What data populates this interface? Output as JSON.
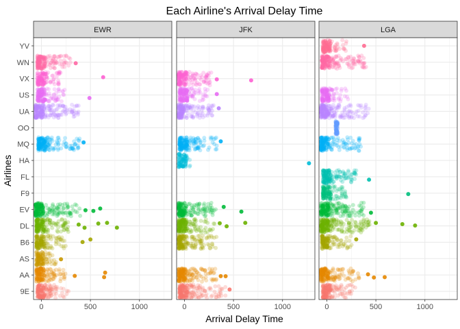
{
  "chart_data": {
    "type": "scatter",
    "title": "Each Airline's Arrival Delay Time",
    "xlabel": "Arrival Delay Time",
    "ylabel": "Airlines",
    "xlim": [
      -80,
      1330
    ],
    "xticks": [
      0,
      500,
      1000
    ],
    "grid": true,
    "jitter": true,
    "panels": [
      "EWR",
      "JFK",
      "LGA"
    ],
    "categories": [
      "9E",
      "AA",
      "AS",
      "B6",
      "DL",
      "EV",
      "F9",
      "FL",
      "HA",
      "MQ",
      "OO",
      "UA",
      "US",
      "VX",
      "WN",
      "YV"
    ],
    "colors": {
      "9E": "#F8766D",
      "AA": "#E58700",
      "AS": "#C99800",
      "B6": "#A3A500",
      "DL": "#6BB100",
      "EV": "#00BA38",
      "F9": "#00BF7D",
      "FL": "#00C0AF",
      "HA": "#00BCD8",
      "MQ": "#00B0F6",
      "OO": "#619CFF",
      "UA": "#B983FF",
      "US": "#E76BF3",
      "VX": "#FD61D1",
      "WN": "#FF67A4",
      "YV": "#FF6C91"
    },
    "series": [
      {
        "panel": "EWR",
        "carrier": "9E",
        "range": [
          -40,
          280
        ],
        "outliers": []
      },
      {
        "panel": "EWR",
        "carrier": "AA",
        "range": [
          -50,
          250
        ],
        "outliers": [
          340,
          640,
          650
        ]
      },
      {
        "panel": "EWR",
        "carrier": "AS",
        "range": [
          -50,
          150
        ],
        "outliers": [
          200
        ]
      },
      {
        "panel": "EWR",
        "carrier": "B6",
        "range": [
          -50,
          250
        ],
        "outliers": [
          420,
          500
        ]
      },
      {
        "panel": "EWR",
        "carrier": "DL",
        "range": [
          -50,
          300
        ],
        "outliers": [
          380,
          440,
          580,
          670,
          770
        ]
      },
      {
        "panel": "EWR",
        "carrier": "EV",
        "range": [
          -60,
          400
        ],
        "outliers": [
          450,
          530,
          600
        ]
      },
      {
        "panel": "EWR",
        "carrier": "MQ",
        "range": [
          -30,
          400
        ],
        "outliers": [
          430
        ]
      },
      {
        "panel": "EWR",
        "carrier": "UA",
        "range": [
          -60,
          380
        ],
        "outliers": []
      },
      {
        "panel": "EWR",
        "carrier": "US",
        "range": [
          -40,
          240
        ],
        "outliers": [
          490
        ]
      },
      {
        "panel": "EWR",
        "carrier": "VX",
        "range": [
          -40,
          200
        ],
        "outliers": [
          630
        ]
      },
      {
        "panel": "EWR",
        "carrier": "WN",
        "range": [
          -40,
          300
        ],
        "outliers": [
          350
        ]
      },
      {
        "panel": "JFK",
        "carrier": "9E",
        "range": [
          -50,
          420
        ],
        "outliers": [
          460
        ]
      },
      {
        "panel": "JFK",
        "carrier": "AA",
        "range": [
          -60,
          330
        ],
        "outliers": [
          370,
          420
        ]
      },
      {
        "panel": "JFK",
        "carrier": "B6",
        "range": [
          -60,
          330
        ],
        "outliers": []
      },
      {
        "panel": "JFK",
        "carrier": "DL",
        "range": [
          -60,
          310
        ],
        "outliers": [
          360,
          430,
          620
        ]
      },
      {
        "panel": "JFK",
        "carrier": "EV",
        "range": [
          -60,
          320
        ],
        "outliers": [
          400,
          580
        ]
      },
      {
        "panel": "JFK",
        "carrier": "HA",
        "range": [
          -60,
          60
        ],
        "outliers": [
          1270
        ]
      },
      {
        "panel": "JFK",
        "carrier": "MQ",
        "range": [
          -50,
          330
        ],
        "outliers": [
          370
        ]
      },
      {
        "panel": "JFK",
        "carrier": "UA",
        "range": [
          -60,
          300
        ],
        "outliers": [
          350
        ]
      },
      {
        "panel": "JFK",
        "carrier": "US",
        "range": [
          -50,
          240
        ],
        "outliers": [
          330
        ]
      },
      {
        "panel": "JFK",
        "carrier": "VX",
        "range": [
          -60,
          280
        ],
        "outliers": [
          330,
          680
        ]
      },
      {
        "panel": "LGA",
        "carrier": "9E",
        "range": [
          -40,
          300
        ],
        "outliers": []
      },
      {
        "panel": "LGA",
        "carrier": "AA",
        "range": [
          -60,
          340
        ],
        "outliers": [
          420,
          480,
          590
        ]
      },
      {
        "panel": "LGA",
        "carrier": "B6",
        "range": [
          -50,
          260
        ],
        "outliers": [
          300
        ]
      },
      {
        "panel": "LGA",
        "carrier": "DL",
        "range": [
          -60,
          450
        ],
        "outliers": [
          500,
          770,
          900
        ]
      },
      {
        "panel": "LGA",
        "carrier": "EV",
        "range": [
          -60,
          390
        ],
        "outliers": [
          450
        ]
      },
      {
        "panel": "LGA",
        "carrier": "F9",
        "range": [
          -40,
          200
        ],
        "outliers": [
          830
        ]
      },
      {
        "panel": "LGA",
        "carrier": "FL",
        "range": [
          -40,
          300
        ],
        "outliers": [
          430
        ]
      },
      {
        "panel": "LGA",
        "carrier": "MQ",
        "range": [
          -60,
          350
        ],
        "outliers": []
      },
      {
        "panel": "LGA",
        "carrier": "OO",
        "range": [
          90,
          110
        ],
        "outliers": []
      },
      {
        "panel": "LGA",
        "carrier": "UA",
        "range": [
          -60,
          430
        ],
        "outliers": []
      },
      {
        "panel": "LGA",
        "carrier": "US",
        "range": [
          -50,
          220
        ],
        "outliers": []
      },
      {
        "panel": "LGA",
        "carrier": "WN",
        "range": [
          -50,
          400
        ],
        "outliers": []
      },
      {
        "panel": "LGA",
        "carrier": "YV",
        "range": [
          -40,
          200
        ],
        "outliers": [
          380
        ]
      }
    ]
  }
}
